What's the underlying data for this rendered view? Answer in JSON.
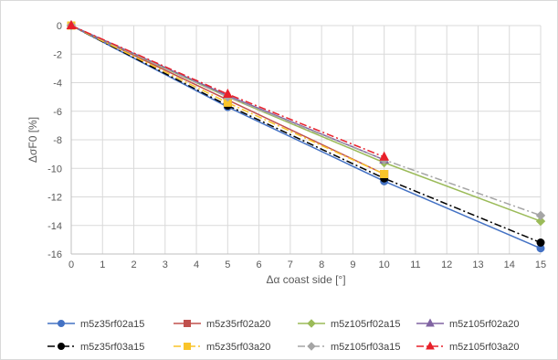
{
  "chart_data": {
    "type": "line",
    "title": "",
    "xlabel": "Δα coast side [°]",
    "ylabel": "ΔσF0 [%]",
    "xlim": [
      0,
      15
    ],
    "ylim": [
      -16,
      0
    ],
    "xticks": [
      0,
      1,
      2,
      3,
      4,
      5,
      6,
      7,
      8,
      9,
      10,
      11,
      12,
      13,
      14,
      15
    ],
    "yticks": [
      0,
      -2,
      -4,
      -6,
      -8,
      -10,
      -12,
      -14,
      -16
    ],
    "grid": true,
    "legend_position": "bottom",
    "x": [
      0,
      5,
      10,
      15
    ],
    "series": [
      {
        "name": "m5z35rf02a15",
        "values": [
          0,
          -5.7,
          -10.9,
          -15.6
        ],
        "color": "#4472C4",
        "dash": "solid",
        "marker": "circle"
      },
      {
        "name": "m5z35rf02a20",
        "values": [
          0,
          -5.2,
          -10.4,
          null
        ],
        "color": "#C0504D",
        "dash": "solid",
        "marker": "square"
      },
      {
        "name": "m5z105rf02a15",
        "values": [
          0,
          -5.0,
          -9.6,
          -13.7
        ],
        "color": "#9BBB59",
        "dash": "solid",
        "marker": "diamond"
      },
      {
        "name": "m5z105rf02a20",
        "values": [
          0,
          -4.9,
          -9.4,
          null
        ],
        "color": "#8064A2",
        "dash": "solid",
        "marker": "triangle"
      },
      {
        "name": "m5z35rf03a15",
        "values": [
          0,
          -5.6,
          -10.7,
          -15.2
        ],
        "color": "#000000",
        "dash": "dashdot",
        "marker": "circle"
      },
      {
        "name": "m5z35rf03a20",
        "values": [
          0,
          -5.4,
          -10.4,
          null
        ],
        "color": "#F9C42A",
        "dash": "dashdot",
        "marker": "square"
      },
      {
        "name": "m5z105rf03a15",
        "values": [
          0,
          -5.0,
          -9.4,
          -13.3
        ],
        "color": "#A5A5A5",
        "dash": "dashdot",
        "marker": "diamond"
      },
      {
        "name": "m5z105rf03a20",
        "values": [
          0,
          -4.8,
          -9.2,
          null
        ],
        "color": "#E8202A",
        "dash": "dashdot",
        "marker": "triangle"
      }
    ]
  }
}
